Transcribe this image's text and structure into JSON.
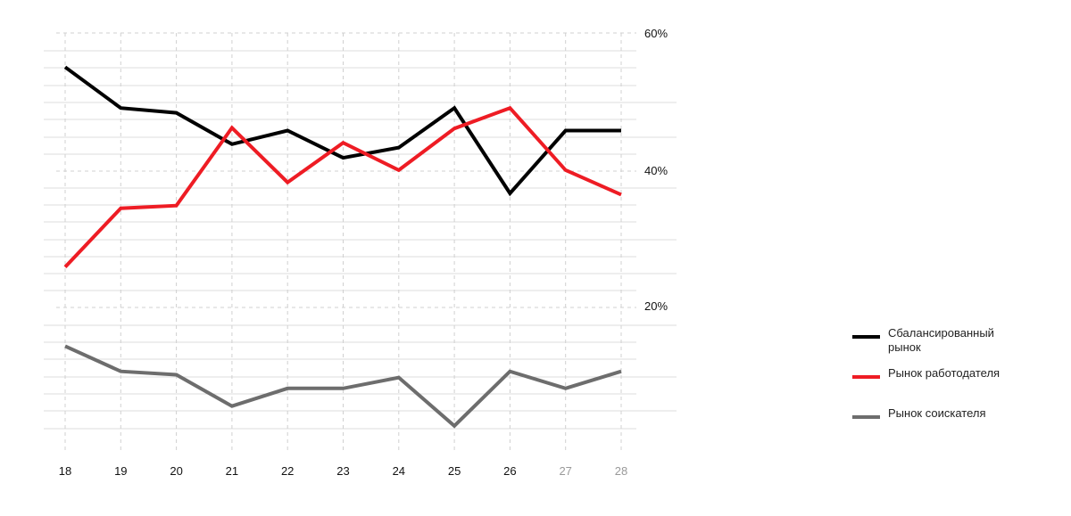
{
  "chart_data": {
    "type": "line",
    "title": "",
    "xlabel": "",
    "ylabel": "",
    "categories": [
      "18",
      "19",
      "20",
      "21",
      "22",
      "23",
      "24",
      "25",
      "26",
      "27",
      "28"
    ],
    "series": [
      {
        "name": "Сбалансированный рынок",
        "color": "#000000",
        "values": [
          57,
          51,
          50.3,
          45.7,
          47.7,
          43.7,
          45.2,
          51,
          38.5,
          47.7,
          47.7
        ]
      },
      {
        "name": "Рынок работодателя",
        "color": "#ee1c24",
        "values": [
          27.7,
          36.3,
          36.7,
          48.1,
          40.1,
          45.9,
          41.9,
          48,
          51,
          41.9,
          38.3
        ]
      },
      {
        "name": "Рынок соискателя",
        "color": "#6d6d6d",
        "values": [
          16.1,
          12.4,
          11.9,
          7.3,
          9.9,
          9.9,
          11.5,
          4.4,
          12.4,
          9.9,
          12.4
        ]
      }
    ],
    "ylim": [
      4,
      62
    ],
    "y_ticks": [
      "60%",
      "40%",
      "20%"
    ],
    "grid": true,
    "legend": "right",
    "tick_colors": {
      "normal": "#111111",
      "faded": "#999999"
    }
  }
}
